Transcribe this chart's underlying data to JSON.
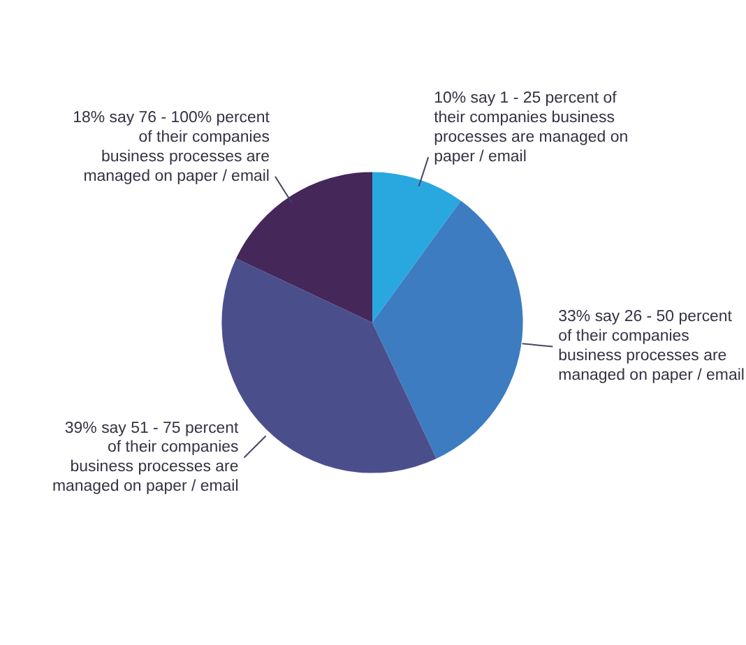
{
  "chart_data": {
    "type": "pie",
    "categories": [
      "10% say 1 - 25 percent of their companies business processes are managed on paper / email",
      "33% say 26 - 50 percent of their companies business processes are managed on paper / email",
      "39% say 51 - 75 percent of their companies business processes are managed on paper / email",
      "18% say 76 - 100% percent of their companies business processes are managed on paper / email"
    ],
    "values": [
      10,
      33,
      39,
      18
    ],
    "colors": [
      "#29a8e0",
      "#3d7cc0",
      "#4a4f8c",
      "#45275a"
    ],
    "legend": false
  }
}
